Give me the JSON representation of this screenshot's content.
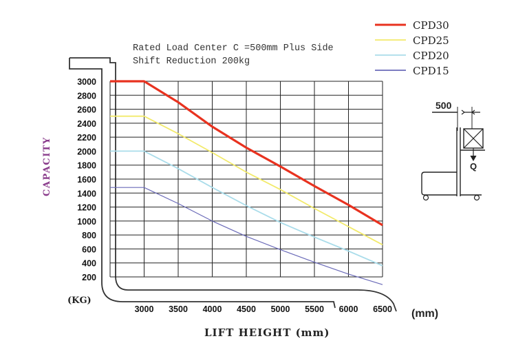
{
  "chart_data": {
    "type": "line",
    "annotation_lines": [
      "Rated Load Center C =500mm Plus Side",
      "Shift Reduction 200kg"
    ],
    "ylabel": "CAPACITY",
    "yunit": "(KG)",
    "xlabel": "LIFT HEIGHT (mm)",
    "xunit": "(mm)",
    "x_tick_labels": [
      "3000",
      "3500",
      "4000",
      "4500",
      "5000",
      "5500",
      "6000",
      "6500"
    ],
    "y_tick_labels": [
      "3000",
      "2800",
      "2600",
      "2400",
      "2200",
      "2000",
      "1800",
      "1600",
      "1400",
      "1200",
      "1000",
      "800",
      "600",
      "400",
      "200"
    ],
    "xlim": [
      2500,
      6500
    ],
    "ylim": [
      0,
      3000
    ],
    "grid": true,
    "legend_position": "top-right",
    "series": [
      {
        "name": "CPD30",
        "color": "#e8321f",
        "style": "solid",
        "points": [
          [
            2500,
            3000
          ],
          [
            3000,
            3000
          ],
          [
            3500,
            2700
          ],
          [
            4000,
            2350
          ],
          [
            4500,
            2050
          ],
          [
            5000,
            1780
          ],
          [
            5500,
            1500
          ],
          [
            6000,
            1230
          ],
          [
            6500,
            940
          ]
        ]
      },
      {
        "name": "CPD25",
        "color": "#f2ea6a",
        "style": "solid",
        "points": [
          [
            2500,
            2500
          ],
          [
            3000,
            2500
          ],
          [
            3500,
            2250
          ],
          [
            4000,
            1980
          ],
          [
            4500,
            1700
          ],
          [
            5000,
            1450
          ],
          [
            5500,
            1180
          ],
          [
            6000,
            920
          ],
          [
            6500,
            660
          ]
        ]
      },
      {
        "name": "CPD20",
        "color": "#a9dcea",
        "style": "solid",
        "points": [
          [
            2500,
            2000
          ],
          [
            3000,
            2000
          ],
          [
            3500,
            1750
          ],
          [
            4000,
            1480
          ],
          [
            4500,
            1220
          ],
          [
            5000,
            980
          ],
          [
            5500,
            770
          ],
          [
            6000,
            570
          ],
          [
            6500,
            360
          ]
        ]
      },
      {
        "name": "CPD15",
        "color": "#6a6ab8",
        "style": "solid",
        "points": [
          [
            2500,
            1480
          ],
          [
            3000,
            1480
          ],
          [
            3500,
            1250
          ],
          [
            4000,
            1000
          ],
          [
            4500,
            780
          ],
          [
            5000,
            590
          ],
          [
            5500,
            410
          ],
          [
            6000,
            240
          ],
          [
            6500,
            90
          ]
        ]
      }
    ]
  },
  "diagram": {
    "dimension_label": "500",
    "load_label": "Q"
  }
}
